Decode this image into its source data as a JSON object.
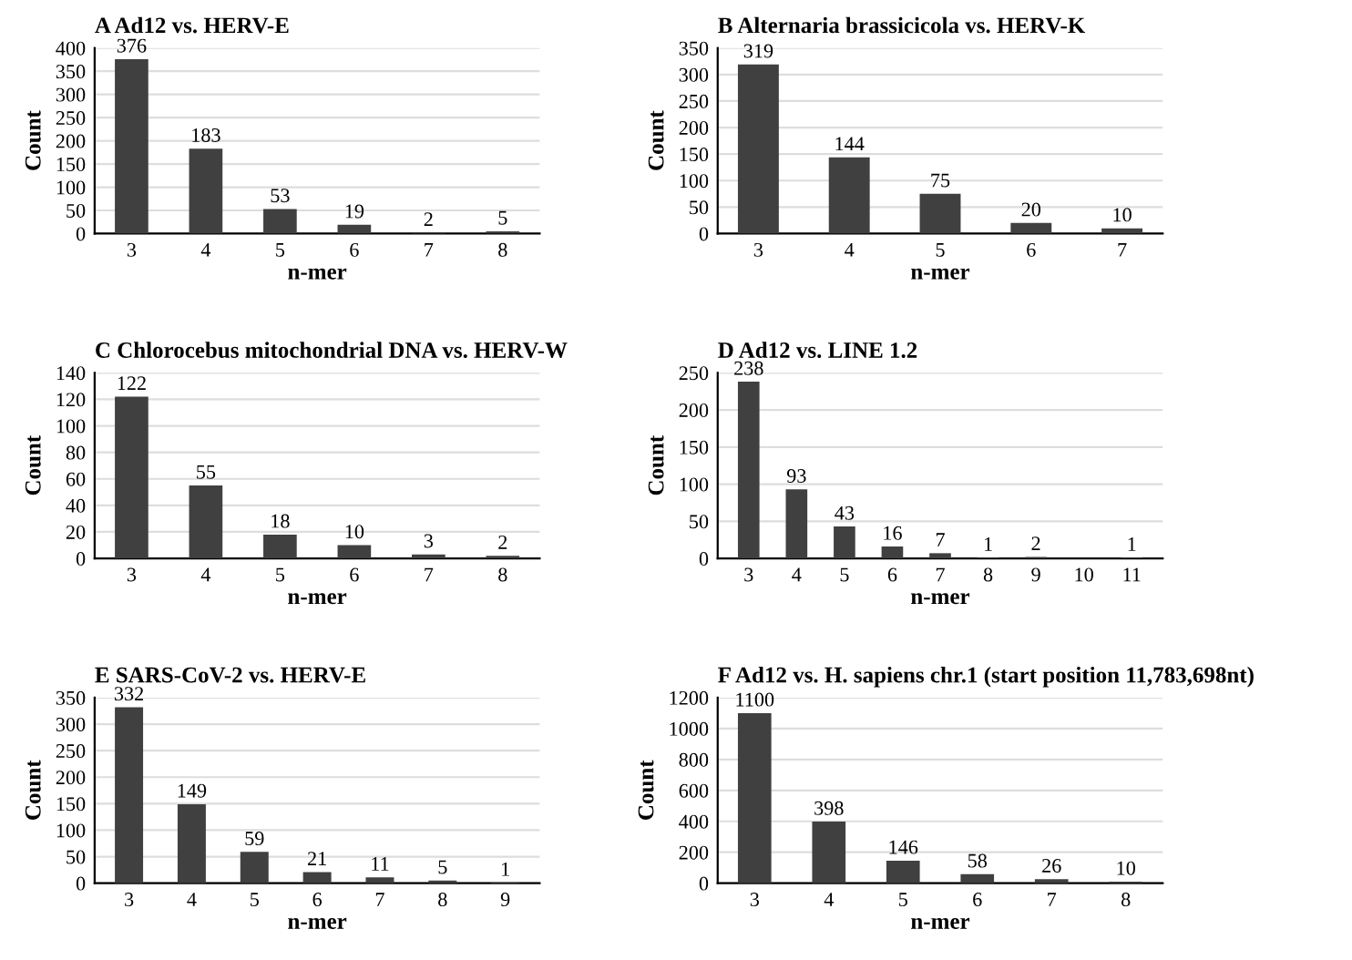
{
  "chart_data": [
    {
      "type": "bar",
      "title": "A Ad12 vs. HERV-E",
      "xlabel": "n-mer",
      "ylabel": "Count",
      "categories": [
        "3",
        "4",
        "5",
        "6",
        "7",
        "8"
      ],
      "values": [
        376,
        183,
        53,
        19,
        2,
        5
      ],
      "color": "#404040",
      "ylim": [
        0,
        400
      ],
      "yticks": [
        0,
        50,
        100,
        150,
        200,
        250,
        300,
        350,
        400
      ],
      "grid": "y",
      "data_labels": true
    },
    {
      "type": "bar",
      "title": "B Alternaria brassicicola vs. HERV-K",
      "xlabel": "n-mer",
      "ylabel": "Count",
      "categories": [
        "3",
        "4",
        "5",
        "6",
        "7"
      ],
      "values": [
        319,
        144,
        75,
        20,
        10
      ],
      "color": "#404040",
      "ylim": [
        0,
        350
      ],
      "yticks": [
        0,
        50,
        100,
        150,
        200,
        250,
        300,
        350
      ],
      "grid": "y",
      "data_labels": true
    },
    {
      "type": "bar",
      "title": "C Chlorocebus mitochondrial DNA vs. HERV-W",
      "xlabel": "n-mer",
      "ylabel": "Count",
      "categories": [
        "3",
        "4",
        "5",
        "6",
        "7",
        "8"
      ],
      "values": [
        122,
        55,
        18,
        10,
        3,
        2
      ],
      "color": "#404040",
      "ylim": [
        0,
        140
      ],
      "yticks": [
        0,
        20,
        40,
        60,
        80,
        100,
        120,
        140
      ],
      "grid": "y",
      "data_labels": true
    },
    {
      "type": "bar",
      "title": "D Ad12 vs. LINE 1.2",
      "xlabel": "n-mer",
      "ylabel": "Count",
      "categories": [
        "3",
        "4",
        "5",
        "6",
        "7",
        "8",
        "9",
        "10",
        "11"
      ],
      "values": [
        238,
        93,
        43,
        16,
        7,
        1,
        2,
        0,
        1
      ],
      "value_labels": [
        "238",
        "93",
        "43",
        "16",
        "7",
        "1",
        "2",
        null,
        "1"
      ],
      "color": "#404040",
      "ylim": [
        0,
        250
      ],
      "yticks": [
        0,
        50,
        100,
        150,
        200,
        250
      ],
      "grid": "y"
    },
    {
      "type": "bar",
      "title": "E SARS-CoV-2 vs. HERV-E",
      "xlabel": "n-mer",
      "ylabel": "Count",
      "categories": [
        "3",
        "4",
        "5",
        "6",
        "7",
        "8",
        "9"
      ],
      "values": [
        332,
        149,
        59,
        21,
        11,
        5,
        1
      ],
      "color": "#404040",
      "ylim": [
        0,
        350
      ],
      "yticks": [
        0,
        50,
        100,
        150,
        200,
        250,
        300,
        350
      ],
      "grid": "y",
      "data_labels": true
    },
    {
      "type": "bar",
      "title": "F Ad12 vs. H. sapiens chr.1 (start position 11,783,698nt)",
      "xlabel": "n-mer",
      "ylabel": "Count",
      "categories": [
        "3",
        "4",
        "5",
        "6",
        "7",
        "8"
      ],
      "values": [
        1100,
        398,
        146,
        58,
        26,
        10
      ],
      "color": "#404040",
      "ylim": [
        0,
        1200
      ],
      "yticks": [
        0,
        200,
        400,
        600,
        800,
        1000,
        1200
      ],
      "grid": "y",
      "data_labels": true
    }
  ]
}
